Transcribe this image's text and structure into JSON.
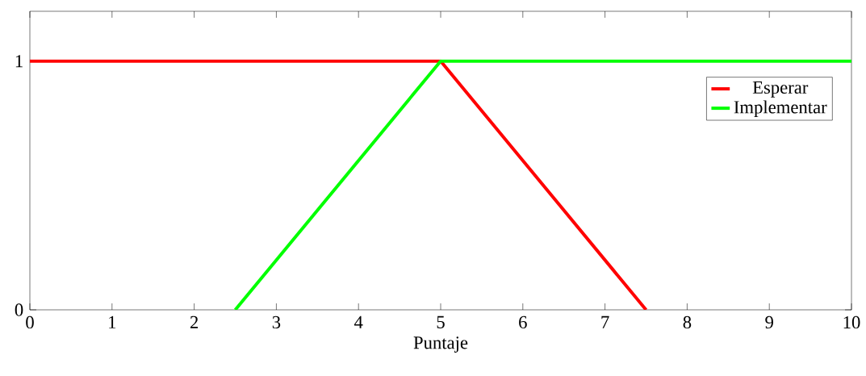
{
  "chart_data": {
    "type": "line",
    "xlabel": "Puntaje",
    "xlim": [
      0,
      10
    ],
    "ylim": [
      0,
      1.2
    ],
    "xticks": [
      0,
      1,
      2,
      3,
      4,
      5,
      6,
      7,
      8,
      9,
      10
    ],
    "yticks": [
      0,
      1
    ],
    "series": [
      {
        "name": "Esperar",
        "color": "#ff0000",
        "x": [
          0,
          5,
          7.5
        ],
        "values": [
          1,
          1,
          0
        ]
      },
      {
        "name": "Implementar",
        "color": "#00ff00",
        "x": [
          2.5,
          5,
          10
        ],
        "values": [
          0,
          1,
          1
        ]
      }
    ],
    "legend": "top right",
    "grid": false,
    "marker": "none",
    "line_style": "solid"
  }
}
